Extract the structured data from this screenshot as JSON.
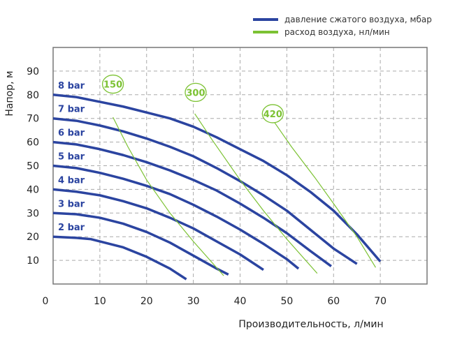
{
  "chart_data": {
    "type": "line",
    "title": "",
    "xlabel": "Производительность, л/мин",
    "ylabel": "Напор, м",
    "xlim": [
      0,
      80
    ],
    "ylim": [
      0,
      100
    ],
    "xticks": [
      0,
      10,
      20,
      30,
      40,
      50,
      60,
      70
    ],
    "yticks": [
      10,
      20,
      30,
      40,
      50,
      60,
      70,
      80,
      90
    ],
    "grid": true,
    "legend": {
      "position": "top-right",
      "entries": [
        {
          "label": "давление сжатого воздуха, мбар",
          "color": "#2b44a0"
        },
        {
          "label": "расход воздуха, нл/мин",
          "color": "#7cc233"
        }
      ]
    },
    "series": [
      {
        "name": "8 bar",
        "group": "pressure",
        "points": [
          [
            0,
            80
          ],
          [
            5,
            79
          ],
          [
            10,
            77
          ],
          [
            15,
            75
          ],
          [
            20,
            72.5
          ],
          [
            25,
            70
          ],
          [
            30,
            66.5
          ],
          [
            35,
            62
          ],
          [
            40,
            57
          ],
          [
            45,
            52
          ],
          [
            50,
            46
          ],
          [
            55,
            39
          ],
          [
            60,
            31
          ],
          [
            65,
            21
          ],
          [
            70,
            9.5
          ]
        ]
      },
      {
        "name": "7 bar",
        "group": "pressure",
        "points": [
          [
            0,
            70
          ],
          [
            5,
            69
          ],
          [
            10,
            67
          ],
          [
            15,
            64.5
          ],
          [
            20,
            61.5
          ],
          [
            25,
            58
          ],
          [
            30,
            54
          ],
          [
            35,
            49
          ],
          [
            40,
            43.5
          ],
          [
            45,
            37.5
          ],
          [
            50,
            31
          ],
          [
            55,
            23
          ],
          [
            60,
            15
          ],
          [
            65,
            8.5
          ]
        ]
      },
      {
        "name": "6 bar",
        "group": "pressure",
        "points": [
          [
            0,
            60
          ],
          [
            5,
            59
          ],
          [
            10,
            57
          ],
          [
            15,
            54.5
          ],
          [
            20,
            51.5
          ],
          [
            25,
            48
          ],
          [
            30,
            44
          ],
          [
            35,
            39.5
          ],
          [
            40,
            34
          ],
          [
            45,
            28
          ],
          [
            50,
            21.5
          ],
          [
            55,
            14
          ],
          [
            59.5,
            7.5
          ]
        ]
      },
      {
        "name": "5 bar",
        "group": "pressure",
        "points": [
          [
            0,
            50
          ],
          [
            5,
            49
          ],
          [
            10,
            47
          ],
          [
            15,
            44.5
          ],
          [
            20,
            41.5
          ],
          [
            25,
            38
          ],
          [
            30,
            33.5
          ],
          [
            35,
            28.5
          ],
          [
            40,
            23
          ],
          [
            45,
            17
          ],
          [
            50,
            10.5
          ],
          [
            52.5,
            6.5
          ]
        ]
      },
      {
        "name": "4 bar",
        "group": "pressure",
        "points": [
          [
            0,
            40
          ],
          [
            5,
            39
          ],
          [
            10,
            37.5
          ],
          [
            15,
            35
          ],
          [
            20,
            32
          ],
          [
            25,
            28
          ],
          [
            30,
            23.5
          ],
          [
            35,
            18
          ],
          [
            40,
            12.5
          ],
          [
            45,
            6
          ]
        ]
      },
      {
        "name": "3 bar",
        "group": "pressure",
        "points": [
          [
            0,
            30
          ],
          [
            5,
            29.5
          ],
          [
            10,
            28
          ],
          [
            15,
            25.5
          ],
          [
            20,
            22
          ],
          [
            25,
            17.5
          ],
          [
            30,
            12
          ],
          [
            35,
            6.5
          ],
          [
            37.5,
            4
          ]
        ]
      },
      {
        "name": "2 bar",
        "group": "pressure",
        "points": [
          [
            0,
            20
          ],
          [
            5,
            19.5
          ],
          [
            8,
            19
          ],
          [
            15,
            15.5
          ],
          [
            20,
            11.5
          ],
          [
            25,
            6.5
          ],
          [
            28.5,
            2
          ]
        ]
      },
      {
        "name": "150",
        "group": "air",
        "points": [
          [
            12.8,
            70.5
          ],
          [
            16,
            58
          ],
          [
            20,
            44
          ],
          [
            25,
            30
          ],
          [
            30,
            18
          ],
          [
            36.5,
            3.5
          ]
        ],
        "label_at": [
          12.8,
          84.5
        ]
      },
      {
        "name": "300",
        "group": "air",
        "points": [
          [
            30.3,
            72
          ],
          [
            34,
            61
          ],
          [
            40,
            44
          ],
          [
            45,
            31
          ],
          [
            50,
            19
          ],
          [
            56.5,
            4.5
          ]
        ],
        "label_at": [
          30.5,
          81
        ]
      },
      {
        "name": "420",
        "group": "air",
        "points": [
          [
            47.3,
            68.5
          ],
          [
            51,
            58
          ],
          [
            56,
            45
          ],
          [
            60,
            34
          ],
          [
            65,
            20
          ],
          [
            69,
            7
          ]
        ],
        "label_at": [
          47,
          72
        ]
      }
    ]
  }
}
